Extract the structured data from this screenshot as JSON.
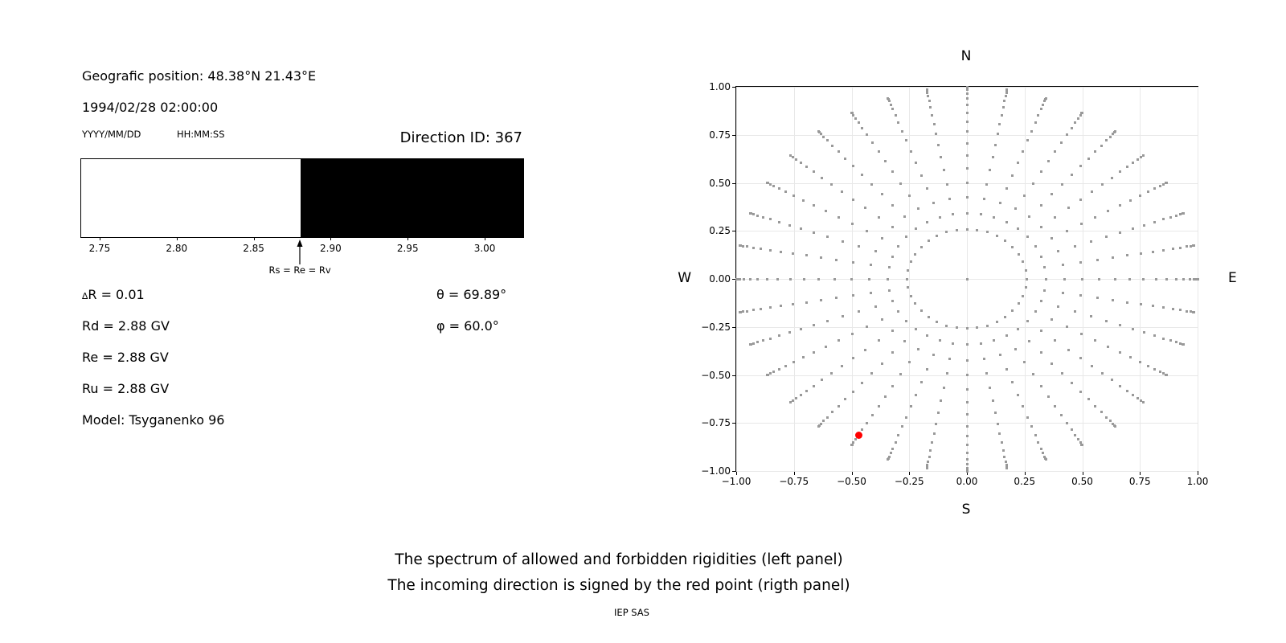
{
  "header": {
    "geo_position": "Geografic position: 48.38°N 21.43°E",
    "datetime": "1994/02/28 02:00:00",
    "date_format_label": "YYYY/MM/DD",
    "time_format_label": "HH:MM:SS",
    "direction_id": "Direction ID: 367"
  },
  "info": {
    "delta_symbol": "∆",
    "delta_r_rest": "R = 0.01",
    "rd": "Rd = 2.88 GV",
    "re": "Re = 2.88 GV",
    "ru": "Ru = 2.88 GV",
    "model": "Model: Tsyganenko 96",
    "theta": "θ = 69.89°",
    "phi": "φ = 60.0°"
  },
  "compass": {
    "north": "N",
    "south": "S",
    "west": "W",
    "east": "E"
  },
  "captions": {
    "line1": "The spectrum of allowed and forbidden rigidities (left panel)",
    "line2": "The incoming direction is signed by the red point (rigth panel)",
    "credit": "IEP SAS"
  },
  "chart_data": [
    {
      "type": "bar",
      "panel": "rigidity-spectrum",
      "xlim": [
        2.7375,
        3.0245
      ],
      "xticks": [
        2.75,
        2.8,
        2.85,
        2.9,
        2.95,
        3.0
      ],
      "xtick_labels": [
        "2.75",
        "2.80",
        "2.85",
        "2.90",
        "2.95",
        "3.00"
      ],
      "regions": [
        {
          "name": "allowed",
          "x0": 2.7375,
          "x1": 2.88,
          "color": "#ffffff"
        },
        {
          "name": "forbidden",
          "x0": 2.88,
          "x1": 3.0245,
          "color": "#000000"
        }
      ],
      "annotation": {
        "text": "Rs = Re = Rv",
        "x": 2.88
      }
    },
    {
      "type": "scatter",
      "panel": "incoming-directions",
      "xlim": [
        -1.0,
        1.0
      ],
      "ylim": [
        -1.0,
        1.0
      ],
      "grid": true,
      "xticks": [
        -1.0,
        -0.75,
        -0.5,
        -0.25,
        0.0,
        0.25,
        0.5,
        0.75,
        1.0
      ],
      "yticks": [
        1.0,
        0.75,
        0.5,
        0.25,
        0.0,
        -0.25,
        -0.5,
        -0.75,
        -1.0
      ],
      "xtick_labels": [
        "−1.00",
        "−0.75",
        "−0.50",
        "−0.25",
        "0.00",
        "0.25",
        "0.50",
        "0.75",
        "1.00"
      ],
      "ytick_labels": [
        "1.00",
        "0.75",
        "0.50",
        "0.25",
        "0.00",
        "−0.25",
        "−0.50",
        "−0.75",
        "−1.00"
      ],
      "direction_grid": {
        "azimuth_start_deg": 0,
        "azimuth_step_deg": 10,
        "azimuth_count": 36,
        "zenith_start_deg": 15,
        "zenith_step_deg": 5,
        "zenith_end_deg": 90,
        "radius_mapping": "sin(zenith)",
        "center_point": true,
        "dot_color": "#999999"
      },
      "red_point": {
        "x": -0.4699,
        "y": -0.8138,
        "color": "#ff0000"
      }
    }
  ]
}
